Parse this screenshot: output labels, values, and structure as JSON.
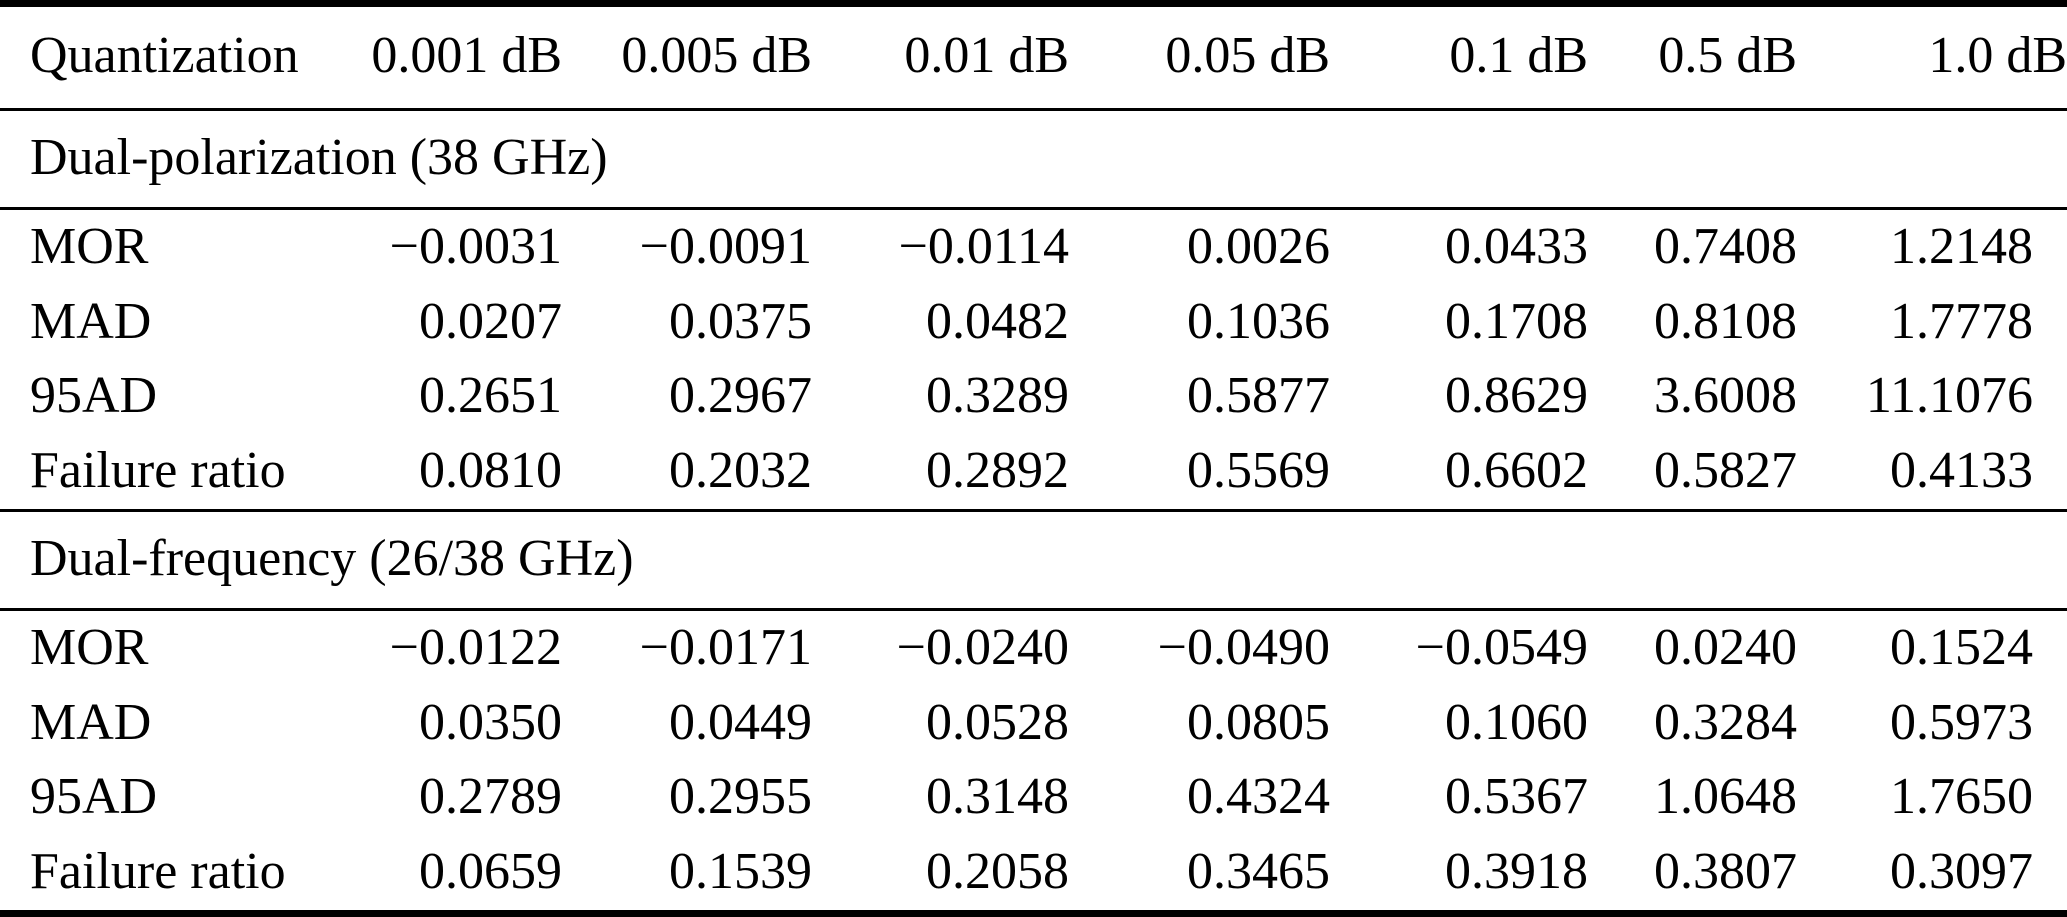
{
  "colors": {
    "text": "#000000",
    "background": "#ffffff",
    "rule": "#000000"
  },
  "table": {
    "columns": [
      "Quantization",
      "0.001 dB",
      "0.005 dB",
      "0.01 dB",
      "0.05 dB",
      "0.1 dB",
      "0.5 dB",
      "1.0 dB"
    ],
    "sections": [
      {
        "title": "Dual-polarization (38 GHz)",
        "rows": [
          {
            "label": "MOR",
            "values": [
              "−0.0031",
              "−0.0091",
              "−0.0114",
              "0.0026",
              "0.0433",
              "0.7408",
              "1.2148"
            ]
          },
          {
            "label": "MAD",
            "values": [
              "0.0207",
              "0.0375",
              "0.0482",
              "0.1036",
              "0.1708",
              "0.8108",
              "1.7778"
            ]
          },
          {
            "label": "95AD",
            "values": [
              "0.2651",
              "0.2967",
              "0.3289",
              "0.5877",
              "0.8629",
              "3.6008",
              "11.1076"
            ]
          },
          {
            "label": "Failure ratio",
            "values": [
              "0.0810",
              "0.2032",
              "0.2892",
              "0.5569",
              "0.6602",
              "0.5827",
              "0.4133"
            ]
          }
        ]
      },
      {
        "title": "Dual-frequency (26/38 GHz)",
        "rows": [
          {
            "label": "MOR",
            "values": [
              "−0.0122",
              "−0.0171",
              "−0.0240",
              "−0.0490",
              "−0.0549",
              "0.0240",
              "0.1524"
            ]
          },
          {
            "label": "MAD",
            "values": [
              "0.0350",
              "0.0449",
              "0.0528",
              "0.0805",
              "0.1060",
              "0.3284",
              "0.5973"
            ]
          },
          {
            "label": "95AD",
            "values": [
              "0.2789",
              "0.2955",
              "0.3148",
              "0.4324",
              "0.5367",
              "1.0648",
              "1.7650"
            ]
          },
          {
            "label": "Failure ratio",
            "values": [
              "0.0659",
              "0.1539",
              "0.2058",
              "0.3465",
              "0.3918",
              "0.3807",
              "0.3097"
            ]
          }
        ]
      }
    ]
  }
}
